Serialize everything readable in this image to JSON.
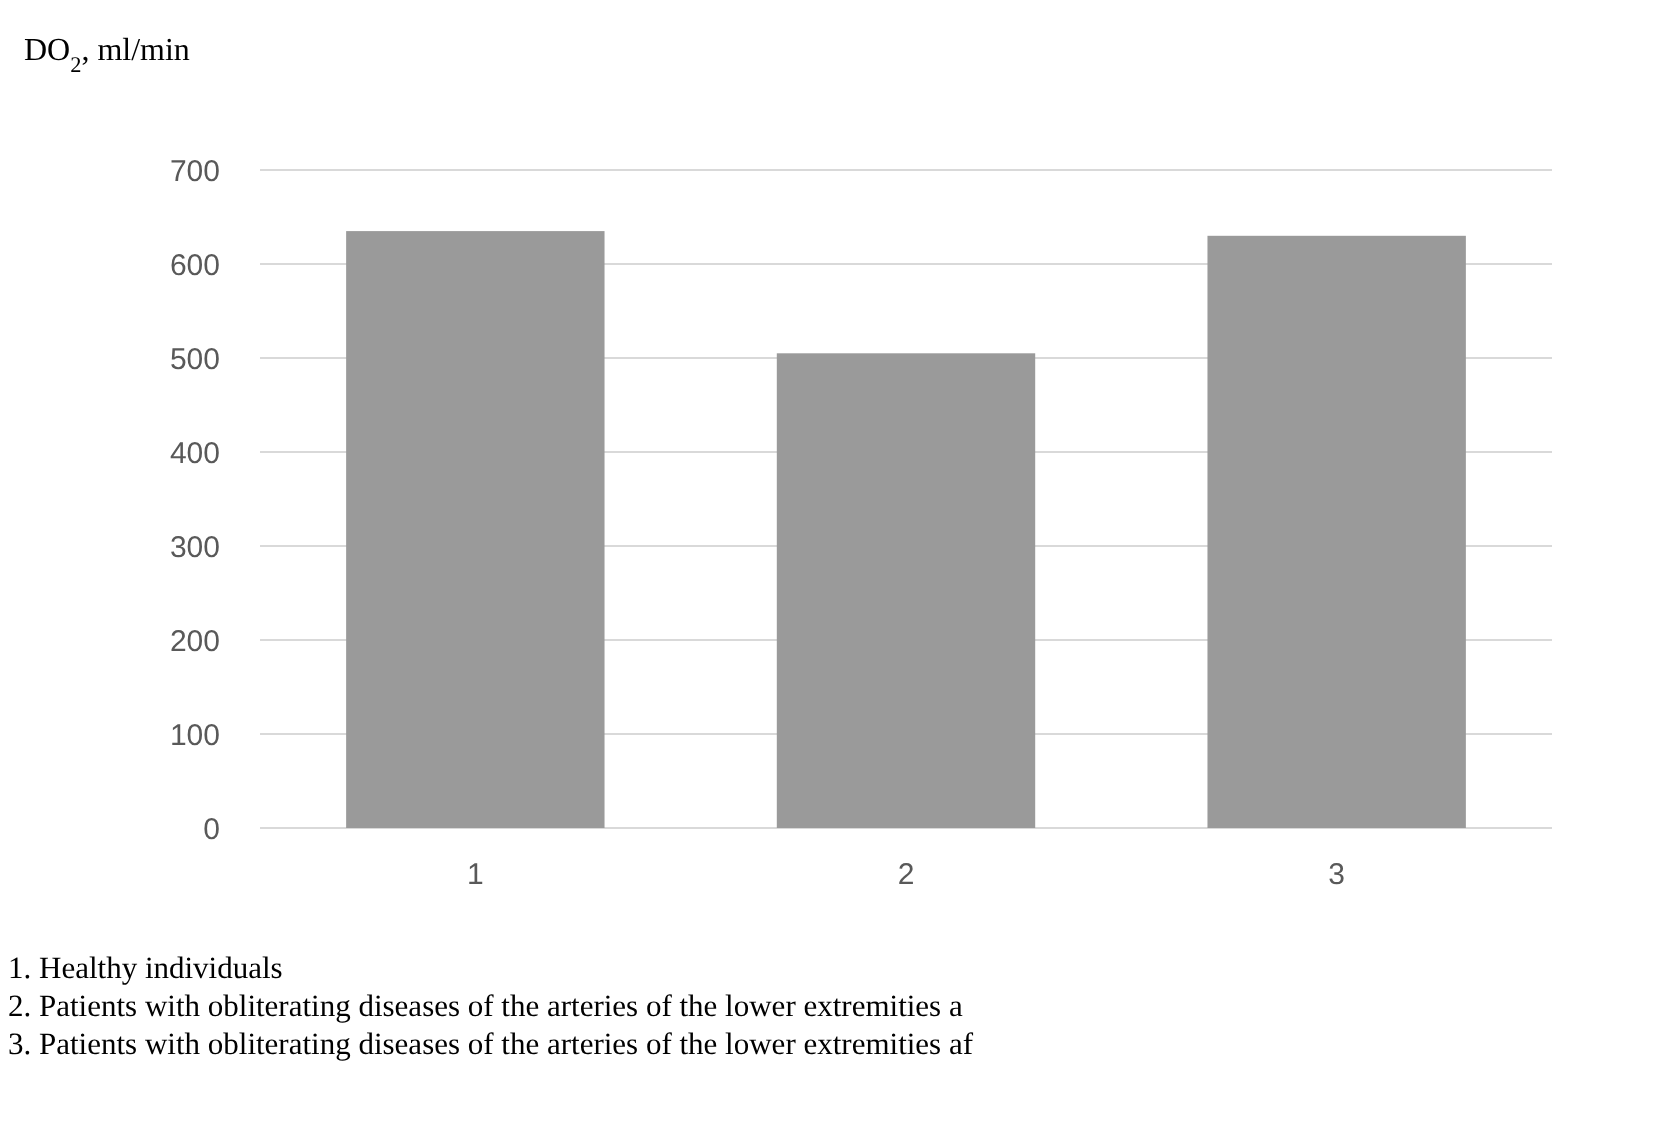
{
  "chart_data": {
    "type": "bar",
    "ylabel": "DO$_{2}$, ml/min",
    "categories": [
      "1",
      "2",
      "3"
    ],
    "values": [
      635,
      505,
      630
    ],
    "color": "#9a9a9a",
    "ylim": [
      0,
      700
    ],
    "yticks": [
      0,
      100,
      200,
      300,
      400,
      500,
      600,
      700
    ],
    "grid": "y",
    "annotations": [
      "1. Healthy individuals",
      "2. Patients with obliterating diseases of the arteries of the lower extremities a",
      "3. Patients with obliterating diseases of the arteries of the lower extremities af"
    ]
  }
}
